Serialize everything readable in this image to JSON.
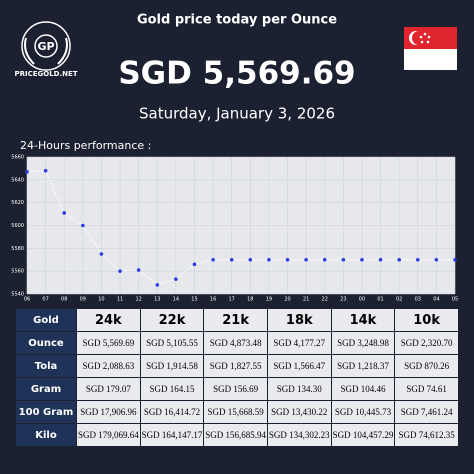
{
  "header": {
    "logo": "GP",
    "site": "PRICEGOLD.NET",
    "title": "Gold price today per Ounce",
    "price": "SGD 5,569.69",
    "date": "Saturday, January 3, 2026"
  },
  "chart_data": {
    "type": "line",
    "title": "24-Hours performance :",
    "categories": [
      "06",
      "07",
      "08",
      "09",
      "10",
      "11",
      "12",
      "13",
      "14",
      "15",
      "16",
      "17",
      "18",
      "19",
      "20",
      "21",
      "22",
      "23",
      "00",
      "01",
      "02",
      "03",
      "04",
      "05"
    ],
    "series": [
      {
        "color": "#ffffff",
        "marker_color": "#2b3be0",
        "values": [
          5647,
          5648,
          5611,
          5600,
          5575,
          5560,
          5561,
          5548,
          5553,
          5566,
          5570,
          5570,
          5570,
          5570,
          5570,
          5570,
          5570,
          5570,
          5570,
          5570,
          5570,
          5570,
          5570,
          5570
        ]
      }
    ],
    "ylim": [
      5540,
      5660
    ],
    "yticks": [
      5540,
      5560,
      5580,
      5600,
      5620,
      5640,
      5660
    ],
    "grid": true
  },
  "table": {
    "header": [
      "Gold",
      "24k",
      "22k",
      "21k",
      "18k",
      "14k",
      "10k"
    ],
    "rows": [
      [
        "Ounce",
        "SGD 5,569.69",
        "SGD 5,105.55",
        "SGD 4,873.48",
        "SGD 4,177.27",
        "SGD 3,248.98",
        "SGD 2,320.70"
      ],
      [
        "Tola",
        "SGD 2,088.63",
        "SGD 1,914.58",
        "SGD 1,827.55",
        "SGD 1,566.47",
        "SGD 1,218.37",
        "SGD 870.26"
      ],
      [
        "Gram",
        "SGD 179.07",
        "SGD 164.15",
        "SGD 156.69",
        "SGD 134.30",
        "SGD 104.46",
        "SGD 74.61"
      ],
      [
        "100 Gram",
        "SGD 17,906.96",
        "SGD 16,414.72",
        "SGD 15,668.59",
        "SGD 13,430.22",
        "SGD 10,445.73",
        "SGD 7,461.24"
      ],
      [
        "Kilo",
        "SGD 179,069.64",
        "SGD 164,147.17",
        "SGD 156,685.94",
        "SGD 134,302.23",
        "SGD 104,457.29",
        "SGD 74,612.35"
      ]
    ]
  }
}
